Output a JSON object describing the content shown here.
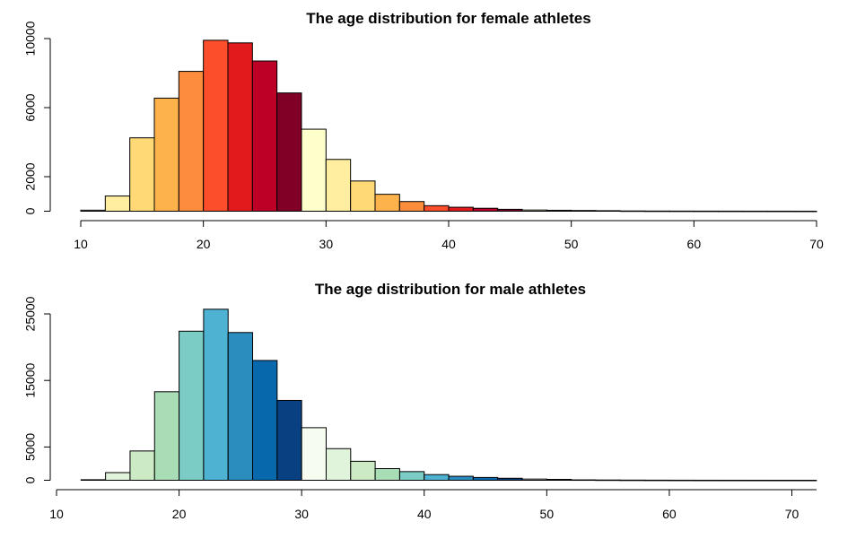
{
  "chart_data": [
    {
      "type": "bar",
      "title": "The age distribution for female athletes",
      "xlabel": "",
      "ylabel": "",
      "x_ticks": [
        10,
        20,
        30,
        40,
        50,
        60,
        70
      ],
      "y_ticks": [
        0,
        2000,
        6000,
        10000
      ],
      "xlim": [
        10,
        70
      ],
      "ylim": [
        0,
        10000
      ],
      "bins": [
        {
          "start": 10,
          "end": 12,
          "value": 60,
          "color": "#FFFFCC"
        },
        {
          "start": 12,
          "end": 14,
          "value": 880,
          "color": "#FFEDA0"
        },
        {
          "start": 14,
          "end": 16,
          "value": 4250,
          "color": "#FED976"
        },
        {
          "start": 16,
          "end": 18,
          "value": 6550,
          "color": "#FEB24C"
        },
        {
          "start": 18,
          "end": 20,
          "value": 8100,
          "color": "#FD8D3C"
        },
        {
          "start": 20,
          "end": 22,
          "value": 9900,
          "color": "#FC4E2A"
        },
        {
          "start": 22,
          "end": 24,
          "value": 9750,
          "color": "#E31A1C"
        },
        {
          "start": 24,
          "end": 26,
          "value": 8700,
          "color": "#BD0026"
        },
        {
          "start": 26,
          "end": 28,
          "value": 6850,
          "color": "#800026"
        },
        {
          "start": 28,
          "end": 30,
          "value": 4750,
          "color": "#FFFFCC"
        },
        {
          "start": 30,
          "end": 32,
          "value": 3000,
          "color": "#FFEDA0"
        },
        {
          "start": 32,
          "end": 34,
          "value": 1750,
          "color": "#FED976"
        },
        {
          "start": 34,
          "end": 36,
          "value": 980,
          "color": "#FEB24C"
        },
        {
          "start": 36,
          "end": 38,
          "value": 560,
          "color": "#FD8D3C"
        },
        {
          "start": 38,
          "end": 40,
          "value": 320,
          "color": "#FC4E2A"
        },
        {
          "start": 40,
          "end": 42,
          "value": 230,
          "color": "#E31A1C"
        },
        {
          "start": 42,
          "end": 44,
          "value": 170,
          "color": "#BD0026"
        },
        {
          "start": 44,
          "end": 46,
          "value": 110,
          "color": "#800026"
        },
        {
          "start": 46,
          "end": 48,
          "value": 70,
          "color": "#FFFFCC"
        },
        {
          "start": 48,
          "end": 50,
          "value": 55,
          "color": "#FFEDA0"
        },
        {
          "start": 50,
          "end": 52,
          "value": 40,
          "color": "#FED976"
        },
        {
          "start": 52,
          "end": 54,
          "value": 30,
          "color": "#FEB24C"
        },
        {
          "start": 54,
          "end": 56,
          "value": 15,
          "color": "#FD8D3C"
        },
        {
          "start": 56,
          "end": 58,
          "value": 10,
          "color": "#FC4E2A"
        },
        {
          "start": 58,
          "end": 60,
          "value": 8,
          "color": "#E31A1C"
        },
        {
          "start": 60,
          "end": 62,
          "value": 6,
          "color": "#BD0026"
        },
        {
          "start": 62,
          "end": 64,
          "value": 5,
          "color": "#800026"
        },
        {
          "start": 64,
          "end": 66,
          "value": 4,
          "color": "#FFFFCC"
        },
        {
          "start": 66,
          "end": 68,
          "value": 3,
          "color": "#FFEDA0"
        },
        {
          "start": 68,
          "end": 70,
          "value": 2,
          "color": "#FED976"
        }
      ]
    },
    {
      "type": "bar",
      "title": "The age distribution for male athletes",
      "xlabel": "",
      "ylabel": "",
      "x_ticks": [
        10,
        20,
        30,
        40,
        50,
        60,
        70
      ],
      "y_ticks": [
        0,
        5000,
        15000,
        25000
      ],
      "xlim": [
        10,
        70
      ],
      "ylim": [
        0,
        25000
      ],
      "bins": [
        {
          "start": 12,
          "end": 14,
          "value": 80,
          "color": "#F7FCF0"
        },
        {
          "start": 14,
          "end": 16,
          "value": 1150,
          "color": "#E0F3DB"
        },
        {
          "start": 16,
          "end": 18,
          "value": 4400,
          "color": "#CCEBC5"
        },
        {
          "start": 18,
          "end": 20,
          "value": 13300,
          "color": "#A8DDB5"
        },
        {
          "start": 20,
          "end": 22,
          "value": 22400,
          "color": "#7BCCC4"
        },
        {
          "start": 22,
          "end": 24,
          "value": 25700,
          "color": "#4EB3D3"
        },
        {
          "start": 24,
          "end": 26,
          "value": 22200,
          "color": "#2B8CBE"
        },
        {
          "start": 26,
          "end": 28,
          "value": 18000,
          "color": "#0868AC"
        },
        {
          "start": 28,
          "end": 30,
          "value": 12000,
          "color": "#084081"
        },
        {
          "start": 30,
          "end": 32,
          "value": 7900,
          "color": "#F7FCF0"
        },
        {
          "start": 32,
          "end": 34,
          "value": 4750,
          "color": "#E0F3DB"
        },
        {
          "start": 34,
          "end": 36,
          "value": 2850,
          "color": "#CCEBC5"
        },
        {
          "start": 36,
          "end": 38,
          "value": 1750,
          "color": "#A8DDB5"
        },
        {
          "start": 38,
          "end": 40,
          "value": 1300,
          "color": "#7BCCC4"
        },
        {
          "start": 40,
          "end": 42,
          "value": 850,
          "color": "#4EB3D3"
        },
        {
          "start": 42,
          "end": 44,
          "value": 600,
          "color": "#2B8CBE"
        },
        {
          "start": 44,
          "end": 46,
          "value": 420,
          "color": "#0868AC"
        },
        {
          "start": 46,
          "end": 48,
          "value": 300,
          "color": "#084081"
        },
        {
          "start": 48,
          "end": 50,
          "value": 180,
          "color": "#F7FCF0"
        },
        {
          "start": 50,
          "end": 52,
          "value": 130,
          "color": "#E0F3DB"
        },
        {
          "start": 52,
          "end": 54,
          "value": 60,
          "color": "#CCEBC5"
        },
        {
          "start": 54,
          "end": 56,
          "value": 40,
          "color": "#A8DDB5"
        },
        {
          "start": 56,
          "end": 58,
          "value": 25,
          "color": "#7BCCC4"
        },
        {
          "start": 58,
          "end": 60,
          "value": 15,
          "color": "#4EB3D3"
        },
        {
          "start": 60,
          "end": 62,
          "value": 10,
          "color": "#2B8CBE"
        },
        {
          "start": 62,
          "end": 64,
          "value": 6,
          "color": "#0868AC"
        },
        {
          "start": 64,
          "end": 66,
          "value": 4,
          "color": "#084081"
        },
        {
          "start": 66,
          "end": 68,
          "value": 3,
          "color": "#F7FCF0"
        },
        {
          "start": 68,
          "end": 70,
          "value": 2,
          "color": "#E0F3DB"
        },
        {
          "start": 70,
          "end": 72,
          "value": 1,
          "color": "#CCEBC5"
        }
      ]
    }
  ]
}
